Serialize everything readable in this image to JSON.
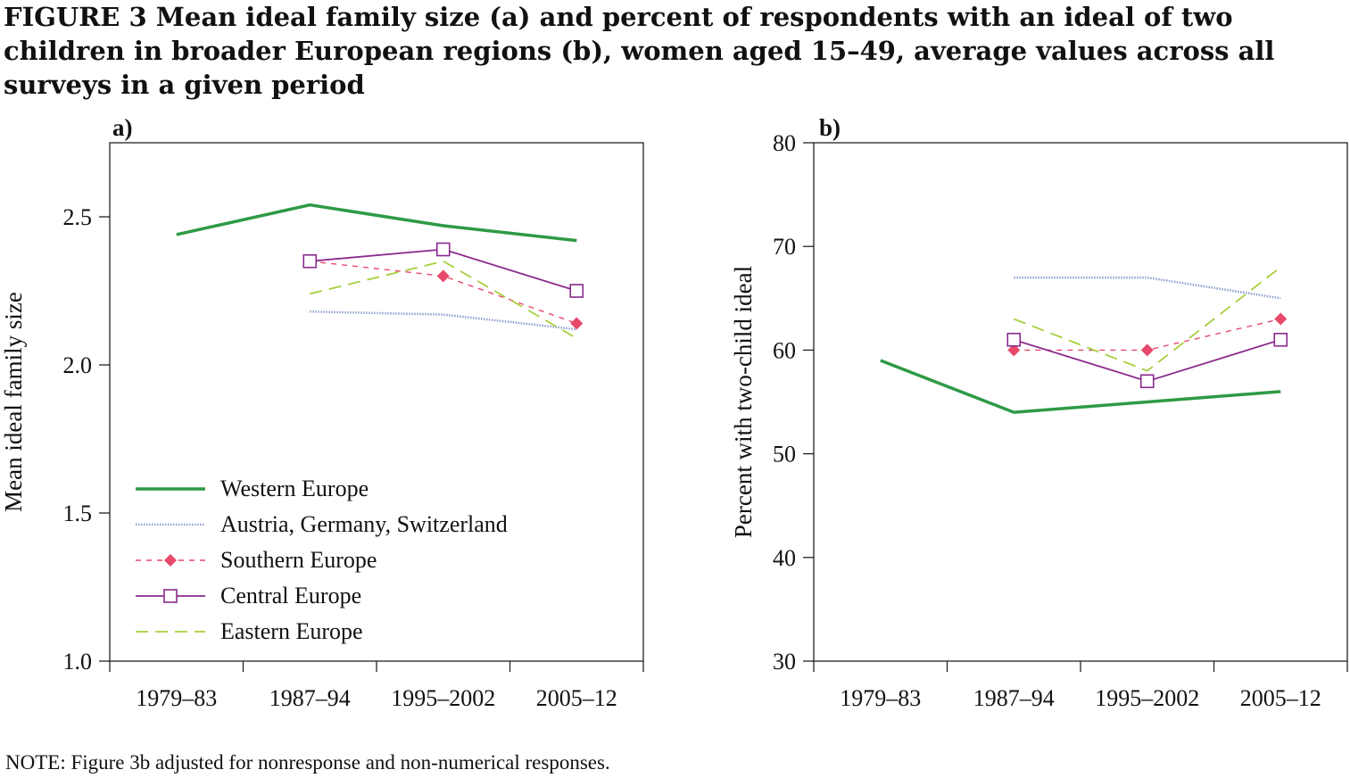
{
  "figure": {
    "title": "FIGURE 3 Mean ideal family size (a) and percent of respondents with an ideal of two children in broader European regions (b), women aged 15–49, average values across all surveys in a given period",
    "note": "NOTE: Figure 3b adjusted for nonresponse and non-numerical responses."
  },
  "legend": [
    {
      "key": "western",
      "label": "Western Europe"
    },
    {
      "key": "ags",
      "label": "Austria, Germany, Switzerland"
    },
    {
      "key": "southern",
      "label": "Southern Europe"
    },
    {
      "key": "central",
      "label": "Central Europe"
    },
    {
      "key": "eastern",
      "label": "Eastern Europe"
    }
  ],
  "styles": {
    "western": {
      "color": "#2e9a45"
    },
    "ags": {
      "color": "#8fa0cc"
    },
    "southern": {
      "color": "#e8496a"
    },
    "central": {
      "color": "#8a2a8c"
    },
    "eastern": {
      "color": "#a6cf3c"
    }
  },
  "chart_data": [
    {
      "type": "line",
      "panel_label": "a)",
      "title": "",
      "xlabel": "",
      "ylabel": "Mean ideal family size",
      "categories": [
        "1979–83",
        "1987–94",
        "1995–2002",
        "2005–12"
      ],
      "ylim": [
        1.0,
        2.75
      ],
      "yticks": [
        1.0,
        1.5,
        2.0,
        2.5
      ],
      "ytick_labels": [
        "1.0",
        "1.5",
        "2.0",
        "2.5"
      ],
      "grid": false,
      "legend_position": "bottom-left",
      "series": [
        {
          "key": "western",
          "name": "Western Europe",
          "x": [
            0,
            1,
            2,
            3
          ],
          "values": [
            2.44,
            2.54,
            2.47,
            2.42
          ]
        },
        {
          "key": "ags",
          "name": "Austria, Germany, Switzerland",
          "x": [
            1,
            2,
            3
          ],
          "values": [
            2.18,
            2.17,
            2.12
          ]
        },
        {
          "key": "southern",
          "name": "Southern Europe",
          "x": [
            1,
            2,
            3
          ],
          "values": [
            2.35,
            2.3,
            2.14
          ]
        },
        {
          "key": "central",
          "name": "Central Europe",
          "x": [
            1,
            2,
            3
          ],
          "values": [
            2.35,
            2.39,
            2.25
          ]
        },
        {
          "key": "eastern",
          "name": "Eastern Europe",
          "x": [
            1,
            2,
            3
          ],
          "values": [
            2.24,
            2.35,
            2.09
          ]
        }
      ]
    },
    {
      "type": "line",
      "panel_label": "b)",
      "title": "",
      "xlabel": "",
      "ylabel": "Percent with two-child ideal",
      "categories": [
        "1979–83",
        "1987–94",
        "1995–2002",
        "2005–12"
      ],
      "ylim": [
        30,
        80
      ],
      "yticks": [
        30,
        40,
        50,
        60,
        70,
        80
      ],
      "ytick_labels": [
        "30",
        "40",
        "50",
        "60",
        "70",
        "80"
      ],
      "grid": false,
      "legend_position": "none",
      "series": [
        {
          "key": "western",
          "name": "Western Europe",
          "x": [
            0,
            1,
            2,
            3
          ],
          "values": [
            59,
            54,
            55,
            56
          ]
        },
        {
          "key": "ags",
          "name": "Austria, Germany, Switzerland",
          "x": [
            1,
            2,
            3
          ],
          "values": [
            67,
            67,
            65
          ]
        },
        {
          "key": "southern",
          "name": "Southern Europe",
          "x": [
            1,
            2,
            3
          ],
          "values": [
            60,
            60,
            63
          ]
        },
        {
          "key": "central",
          "name": "Central Europe",
          "x": [
            1,
            2,
            3
          ],
          "values": [
            61,
            57,
            61
          ]
        },
        {
          "key": "eastern",
          "name": "Eastern Europe",
          "x": [
            1,
            2,
            3
          ],
          "values": [
            63,
            58,
            68
          ]
        }
      ]
    }
  ]
}
